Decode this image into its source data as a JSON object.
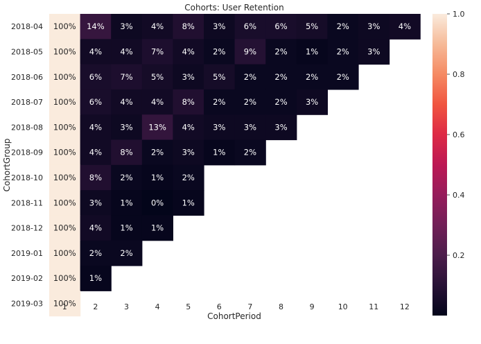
{
  "chart_data": {
    "type": "heatmap",
    "title": "Cohorts: User Retention",
    "xlabel": "CohortPeriod",
    "ylabel": "CohortGroup",
    "x": [
      "1",
      "2",
      "3",
      "4",
      "5",
      "6",
      "7",
      "8",
      "9",
      "10",
      "11",
      "12"
    ],
    "y": [
      "2018-04",
      "2018-05",
      "2018-06",
      "2018-07",
      "2018-08",
      "2018-09",
      "2018-10",
      "2018-11",
      "2018-12",
      "2019-01",
      "2019-02",
      "2019-03"
    ],
    "values": [
      [
        1.0,
        0.14,
        0.03,
        0.04,
        0.08,
        0.03,
        0.06,
        0.06,
        0.05,
        0.02,
        0.03,
        0.04
      ],
      [
        1.0,
        0.04,
        0.04,
        0.07,
        0.04,
        0.02,
        0.09,
        0.02,
        0.01,
        0.02,
        0.03,
        null
      ],
      [
        1.0,
        0.06,
        0.07,
        0.05,
        0.03,
        0.05,
        0.02,
        0.02,
        0.02,
        0.02,
        null,
        null
      ],
      [
        1.0,
        0.06,
        0.04,
        0.04,
        0.08,
        0.02,
        0.02,
        0.02,
        0.03,
        null,
        null,
        null
      ],
      [
        1.0,
        0.04,
        0.03,
        0.13,
        0.04,
        0.03,
        0.03,
        0.03,
        null,
        null,
        null,
        null
      ],
      [
        1.0,
        0.04,
        0.08,
        0.02,
        0.03,
        0.01,
        0.02,
        null,
        null,
        null,
        null,
        null
      ],
      [
        1.0,
        0.08,
        0.02,
        0.01,
        0.02,
        null,
        null,
        null,
        null,
        null,
        null,
        null
      ],
      [
        1.0,
        0.03,
        0.01,
        0.0,
        0.01,
        null,
        null,
        null,
        null,
        null,
        null,
        null
      ],
      [
        1.0,
        0.04,
        0.01,
        0.01,
        null,
        null,
        null,
        null,
        null,
        null,
        null,
        null
      ],
      [
        1.0,
        0.02,
        0.02,
        null,
        null,
        null,
        null,
        null,
        null,
        null,
        null,
        null
      ],
      [
        1.0,
        0.01,
        null,
        null,
        null,
        null,
        null,
        null,
        null,
        null,
        null,
        null
      ],
      [
        1.0,
        null,
        null,
        null,
        null,
        null,
        null,
        null,
        null,
        null,
        null,
        null
      ]
    ],
    "annotations": [
      [
        "100%",
        "14%",
        "3%",
        "4%",
        "8%",
        "3%",
        "6%",
        "6%",
        "5%",
        "2%",
        "3%",
        "4%"
      ],
      [
        "100%",
        "4%",
        "4%",
        "7%",
        "4%",
        "2%",
        "9%",
        "2%",
        "1%",
        "2%",
        "3%",
        null
      ],
      [
        "100%",
        "6%",
        "7%",
        "5%",
        "3%",
        "5%",
        "2%",
        "2%",
        "2%",
        "2%",
        null,
        null
      ],
      [
        "100%",
        "6%",
        "4%",
        "4%",
        "8%",
        "2%",
        "2%",
        "2%",
        "3%",
        null,
        null,
        null
      ],
      [
        "100%",
        "4%",
        "3%",
        "13%",
        "4%",
        "3%",
        "3%",
        "3%",
        null,
        null,
        null,
        null
      ],
      [
        "100%",
        "4%",
        "8%",
        "2%",
        "3%",
        "1%",
        "2%",
        null,
        null,
        null,
        null,
        null
      ],
      [
        "100%",
        "8%",
        "2%",
        "1%",
        "2%",
        null,
        null,
        null,
        null,
        null,
        null,
        null
      ],
      [
        "100%",
        "3%",
        "1%",
        "0%",
        "1%",
        null,
        null,
        null,
        null,
        null,
        null,
        null
      ],
      [
        "100%",
        "4%",
        "1%",
        "1%",
        null,
        null,
        null,
        null,
        null,
        null,
        null,
        null
      ],
      [
        "100%",
        "2%",
        "2%",
        null,
        null,
        null,
        null,
        null,
        null,
        null,
        null,
        null
      ],
      [
        "100%",
        "1%",
        null,
        null,
        null,
        null,
        null,
        null,
        null,
        null,
        null,
        null
      ],
      [
        "100%",
        null,
        null,
        null,
        null,
        null,
        null,
        null,
        null,
        null,
        null,
        null
      ]
    ],
    "colormap": "rocket",
    "vmin": 0.0,
    "vmax": 1.0,
    "colorbar_ticks": [
      "0.2",
      "0.4",
      "0.6",
      "0.8",
      "1.0"
    ],
    "grid": false,
    "colors": {
      "low": "#03051a",
      "high": "#faebdd",
      "text_dark_cell": "#ffffff",
      "text_light_cell": "#262626"
    }
  }
}
